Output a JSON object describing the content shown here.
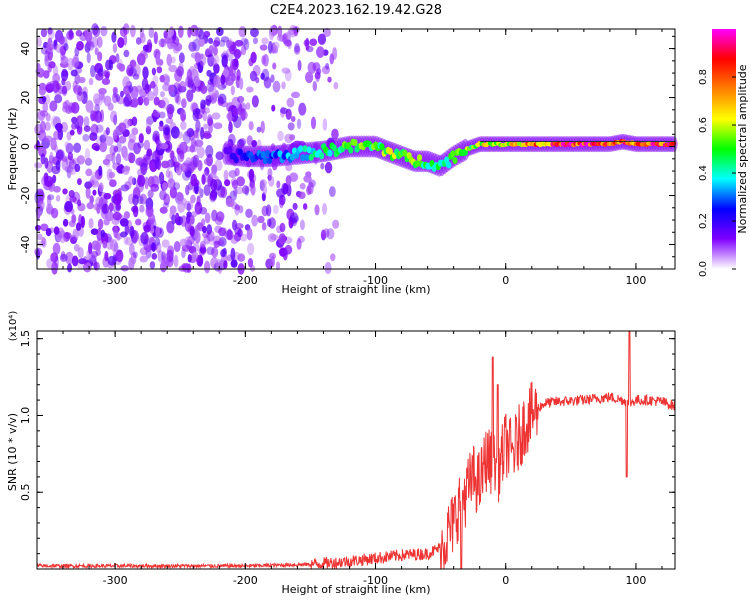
{
  "title": "C2E4.2023.162.19.42.G28",
  "chart_data": [
    {
      "type": "heatmap",
      "xlabel": "Height of straight line (km)",
      "ylabel": "Frequency (Hz)",
      "xlim": [
        -360,
        130
      ],
      "ylim": [
        -50,
        48
      ],
      "x_ticks": [
        -300,
        -200,
        -100,
        0,
        100
      ],
      "x_tick_labels": [
        "-300",
        "-200",
        "-100",
        "0",
        "100"
      ],
      "y_ticks": [
        -40,
        -20,
        0,
        20,
        40
      ],
      "y_tick_labels": [
        "-40",
        "-20",
        "0",
        "20",
        "40"
      ],
      "colorbar": {
        "label": "Normalized spectral amplitude",
        "range": [
          0,
          1
        ],
        "ticks": [
          0,
          0.2,
          0.4,
          0.6,
          0.8
        ],
        "tick_labels": [
          "0.0",
          "0.2",
          "0.4",
          "0.6",
          "0.8"
        ],
        "colormap": [
          "#ffffff",
          "#7f00ff",
          "#0000ff",
          "#00ffff",
          "#00ff00",
          "#ffff00",
          "#ff7f00",
          "#ff0000",
          "#ff00ff"
        ]
      },
      "noise_region": {
        "x_range": [
          -360,
          -160
        ],
        "amplitude": 0.1
      },
      "ridge": {
        "x": [
          -215,
          -200,
          -180,
          -160,
          -140,
          -120,
          -100,
          -90,
          -80,
          -70,
          -60,
          -50,
          -40,
          -30,
          -20,
          -10,
          0,
          20,
          40,
          60,
          80,
          90,
          100,
          130
        ],
        "y": [
          -3,
          -4,
          -4,
          -3,
          -2,
          0,
          0,
          -2,
          -4,
          -6,
          -6,
          -8,
          -4,
          -1,
          1,
          1,
          1,
          1,
          1,
          1,
          1,
          2,
          1,
          1
        ],
        "amplitude": [
          0.15,
          0.25,
          0.3,
          0.35,
          0.45,
          0.55,
          0.5,
          0.6,
          0.55,
          0.55,
          0.45,
          0.45,
          0.5,
          0.55,
          0.6,
          0.65,
          0.65,
          0.75,
          0.85,
          0.9,
          0.85,
          0.8,
          0.85,
          0.85
        ]
      },
      "grid": false
    },
    {
      "type": "line",
      "xlabel": "Height of straight line (km)",
      "ylabel": "SNR (10 * v/v)",
      "scale_label": "(x10⁴)",
      "xlim": [
        -360,
        130
      ],
      "ylim": [
        0,
        1.55
      ],
      "x_ticks": [
        -300,
        -200,
        -100,
        0,
        100
      ],
      "x_tick_labels": [
        "-300",
        "-200",
        "-100",
        "0",
        "100"
      ],
      "y_ticks": [
        0.5,
        1.0,
        1.5
      ],
      "y_tick_labels": [
        "0.5",
        "1.0",
        "1.5"
      ],
      "color": "#ee3333",
      "x": [
        -360,
        -300,
        -250,
        -200,
        -150,
        -120,
        -100,
        -80,
        -60,
        -50,
        -40,
        -35,
        -30,
        -25,
        -20,
        -15,
        -10,
        -5,
        0,
        5,
        10,
        15,
        20,
        25,
        30,
        40,
        60,
        80,
        90,
        95,
        100,
        110,
        120,
        130
      ],
      "y": [
        0.02,
        0.02,
        0.02,
        0.02,
        0.03,
        0.05,
        0.07,
        0.09,
        0.1,
        0.14,
        0.3,
        0.45,
        0.5,
        0.6,
        0.55,
        0.72,
        0.68,
        0.65,
        0.82,
        0.75,
        0.85,
        0.95,
        1.0,
        1.05,
        1.08,
        1.09,
        1.1,
        1.12,
        1.1,
        1.08,
        1.1,
        1.1,
        1.09,
        1.06
      ],
      "spikes": [
        {
          "x": -34,
          "y": 0.0
        },
        {
          "x": -10,
          "y": 1.38
        },
        {
          "x": -6,
          "y": 1.2
        },
        {
          "x": 95,
          "y": 1.55
        },
        {
          "x": 93,
          "y": 0.6
        }
      ],
      "grid": false
    }
  ]
}
